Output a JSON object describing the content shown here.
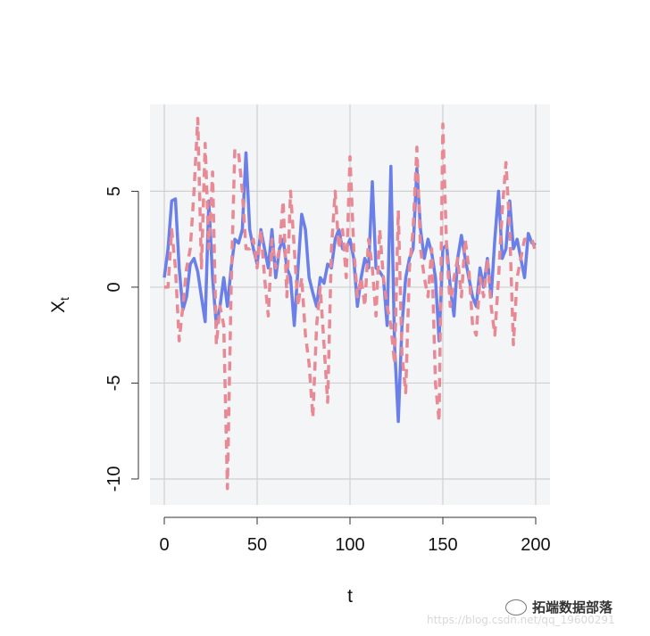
{
  "chart_data": {
    "type": "line",
    "title": "",
    "xlabel": "t",
    "ylabel": "X",
    "ylabel_subscript": "t",
    "xlim": [
      -7.7,
      207.7
    ],
    "ylim": [
      -11.35,
      9.53
    ],
    "xticks": [
      0,
      50,
      100,
      150,
      200
    ],
    "yticks": [
      -10,
      -5,
      0,
      5
    ],
    "grid": true,
    "legend": "none",
    "x": [
      0,
      2,
      4,
      6,
      8,
      10,
      12,
      14,
      16,
      18,
      20,
      22,
      24,
      26,
      28,
      30,
      32,
      34,
      36,
      38,
      40,
      42,
      44,
      46,
      48,
      50,
      52,
      54,
      56,
      58,
      60,
      62,
      64,
      66,
      68,
      70,
      72,
      74,
      76,
      78,
      80,
      82,
      84,
      86,
      88,
      90,
      92,
      94,
      96,
      98,
      100,
      102,
      104,
      106,
      108,
      110,
      112,
      114,
      116,
      118,
      120,
      122,
      124,
      126,
      128,
      130,
      132,
      134,
      136,
      138,
      140,
      142,
      144,
      146,
      148,
      150,
      152,
      154,
      156,
      158,
      160,
      162,
      164,
      166,
      168,
      170,
      172,
      174,
      176,
      178,
      180,
      182,
      184,
      186,
      188,
      190,
      192,
      194,
      196,
      198,
      200
    ],
    "series": [
      {
        "style": "solid",
        "color": "#6b7fe8",
        "values": [
          0.5,
          2,
          4.5,
          4.6,
          1,
          -1.2,
          -0.5,
          1.2,
          1.5,
          0.8,
          -0.5,
          -1.8,
          4.5,
          0.5,
          -2,
          -1,
          0.5,
          -1,
          1,
          2.5,
          2.3,
          3,
          7,
          3,
          2,
          1.2,
          3,
          2,
          1,
          3,
          0.5,
          2,
          2.5,
          1,
          0.5,
          -2,
          1,
          3.8,
          3,
          0.5,
          -0.3,
          -1,
          0.5,
          0.2,
          1.2,
          1,
          2.5,
          3,
          2,
          2,
          2.5,
          1.5,
          -1,
          0.5,
          1.5,
          1,
          5.5,
          1,
          0.8,
          0.5,
          -2,
          6.3,
          -3,
          -7,
          -2,
          0.5,
          1.5,
          2,
          6.2,
          3,
          1.5,
          2.5,
          1.8,
          0.5,
          -2.8,
          2,
          2.2,
          0,
          -1.5,
          1.5,
          2.7,
          1.5,
          0.5,
          -0.5,
          -1,
          1,
          0,
          1.5,
          -0.5,
          2.5,
          5,
          1.5,
          2,
          4.5,
          2,
          2.5,
          1.5,
          0.5,
          2.8,
          2.3,
          2.2
        ]
      },
      {
        "style": "dashed",
        "color": "#e78a96",
        "values": [
          0,
          0,
          3,
          1,
          -2.8,
          -1,
          1,
          2,
          5,
          8.8,
          1,
          7.5,
          2,
          6,
          -3,
          -1,
          -2,
          -10.5,
          0,
          7.2,
          7,
          5,
          2,
          2,
          2.5,
          1,
          3,
          0.5,
          -1.5,
          2.5,
          1,
          2,
          4.5,
          -0.5,
          5,
          2,
          -1,
          0.5,
          -2.5,
          -4,
          -6.8,
          -2,
          0,
          -3,
          -6,
          2,
          5,
          2,
          3,
          0.5,
          6.8,
          2,
          -0.5,
          0.5,
          -1,
          2.5,
          1,
          -1.5,
          3,
          0.5,
          -1,
          -2,
          -4,
          4,
          -3.5,
          -5.5,
          1,
          3,
          7.3,
          2,
          0.5,
          -0.5,
          2,
          -5,
          -7,
          8.5,
          2,
          -1,
          0.5,
          1.5,
          -0.5,
          2.5,
          1,
          -2,
          -2.5,
          0.5,
          -0.5,
          1.5,
          -1,
          -2.5,
          0.5,
          4,
          6.5,
          3,
          -3,
          0.5,
          1.5,
          2.5,
          2.5,
          2.5,
          1.8
        ]
      }
    ]
  },
  "watermark": {
    "brand": "拓端数据部落",
    "url": "https://blog.csdn.net/qq_19600291",
    "icon": "wechat-icon"
  }
}
